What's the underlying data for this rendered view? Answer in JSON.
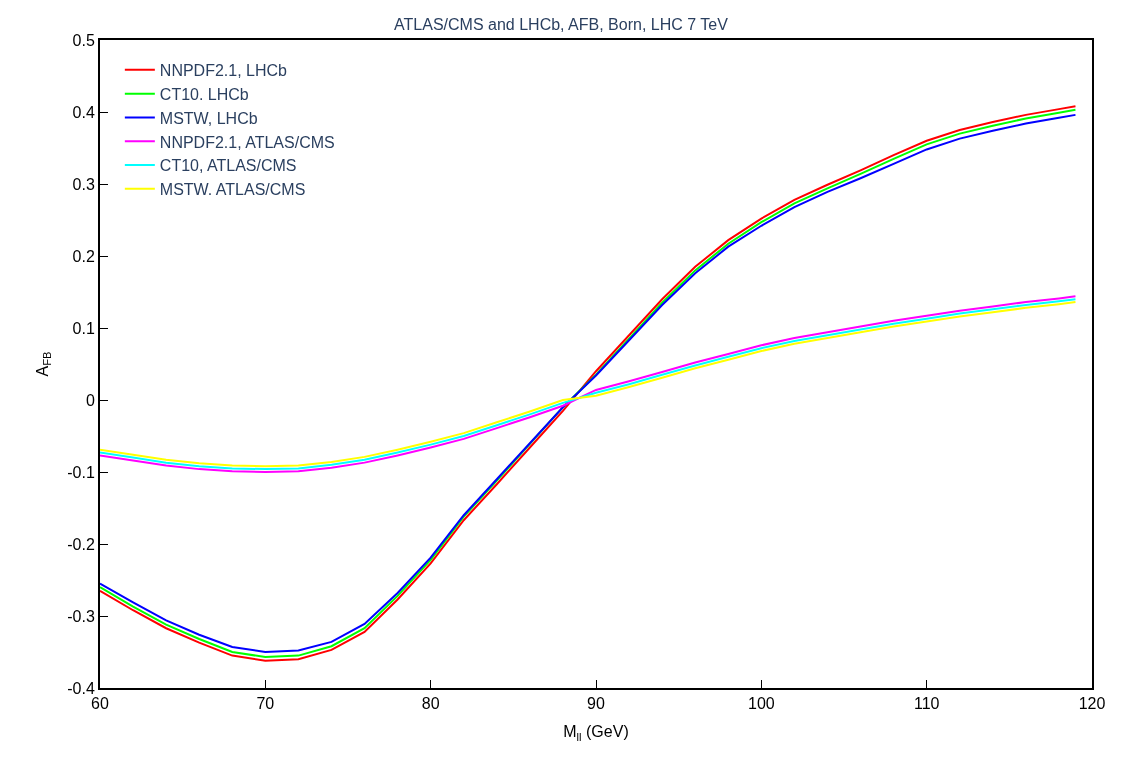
{
  "chart_data": {
    "type": "line",
    "title": "ATLAS/CMS and LHCb, AFB, Born, LHC 7 TeV",
    "xlabel": "M$_{ll}$ (GeV)",
    "ylabel": "A$_{FB}$",
    "x": [
      60,
      62,
      64,
      66,
      68,
      70,
      72,
      74,
      76,
      78,
      80,
      82,
      84,
      86,
      88,
      90,
      92,
      94,
      96,
      98,
      100,
      102,
      104,
      106,
      108,
      110,
      112,
      114,
      116,
      118,
      119
    ],
    "series": [
      {
        "name": "NNPDF2.1, LHCb",
        "color": "#ff0000",
        "values": [
          -0.265,
          -0.292,
          -0.317,
          -0.337,
          -0.355,
          -0.362,
          -0.36,
          -0.347,
          -0.322,
          -0.277,
          -0.227,
          -0.167,
          -0.117,
          -0.066,
          -0.015,
          0.04,
          0.09,
          0.14,
          0.185,
          0.222,
          0.252,
          0.278,
          0.299,
          0.319,
          0.34,
          0.36,
          0.375,
          0.386,
          0.396,
          0.404,
          0.408
        ]
      },
      {
        "name": "CT10. LHCb",
        "color": "#00ff00",
        "values": [
          -0.26,
          -0.287,
          -0.312,
          -0.332,
          -0.35,
          -0.357,
          -0.355,
          -0.342,
          -0.317,
          -0.272,
          -0.222,
          -0.162,
          -0.112,
          -0.061,
          -0.01,
          0.035,
          0.085,
          0.135,
          0.18,
          0.217,
          0.247,
          0.273,
          0.294,
          0.314,
          0.335,
          0.355,
          0.37,
          0.381,
          0.391,
          0.399,
          0.403
        ]
      },
      {
        "name": "MSTW, LHCb",
        "color": "#0000ff",
        "values": [
          -0.255,
          -0.281,
          -0.306,
          -0.326,
          -0.343,
          -0.35,
          -0.348,
          -0.336,
          -0.311,
          -0.268,
          -0.219,
          -0.16,
          -0.11,
          -0.06,
          -0.01,
          0.034,
          0.083,
          0.132,
          0.176,
          0.213,
          0.242,
          0.268,
          0.289,
          0.308,
          0.328,
          0.348,
          0.363,
          0.374,
          0.384,
          0.392,
          0.396
        ]
      },
      {
        "name": "NNPDF2.1, ATLAS/CMS",
        "color": "#ff00ff",
        "values": [
          -0.077,
          -0.084,
          -0.091,
          -0.096,
          -0.099,
          -0.1,
          -0.099,
          -0.094,
          -0.087,
          -0.077,
          -0.066,
          -0.054,
          -0.039,
          -0.024,
          -0.008,
          0.014,
          0.026,
          0.039,
          0.052,
          0.064,
          0.076,
          0.086,
          0.094,
          0.102,
          0.11,
          0.117,
          0.124,
          0.13,
          0.136,
          0.141,
          0.144
        ]
      },
      {
        "name": "CT10, ATLAS/CMS",
        "color": "#00ffff",
        "values": [
          -0.073,
          -0.08,
          -0.087,
          -0.092,
          -0.095,
          -0.096,
          -0.095,
          -0.09,
          -0.083,
          -0.073,
          -0.062,
          -0.05,
          -0.035,
          -0.02,
          -0.004,
          0.01,
          0.022,
          0.035,
          0.048,
          0.06,
          0.072,
          0.082,
          0.09,
          0.098,
          0.106,
          0.113,
          0.12,
          0.126,
          0.132,
          0.137,
          0.14
        ]
      },
      {
        "name": "MSTW. ATLAS/CMS",
        "color": "#ffff00",
        "values": [
          -0.069,
          -0.076,
          -0.083,
          -0.088,
          -0.091,
          -0.092,
          -0.091,
          -0.086,
          -0.079,
          -0.069,
          -0.058,
          -0.046,
          -0.031,
          -0.016,
          0.0,
          0.006,
          0.018,
          0.031,
          0.044,
          0.056,
          0.068,
          0.078,
          0.086,
          0.094,
          0.102,
          0.109,
          0.116,
          0.122,
          0.128,
          0.133,
          0.136
        ]
      }
    ],
    "xlim": [
      60,
      120
    ],
    "xticks": [
      60,
      70,
      80,
      90,
      100,
      110,
      120
    ],
    "ylim": [
      -0.4,
      0.5
    ],
    "yticks": [
      {
        "value": -0.4,
        "label": "-0.4"
      },
      {
        "value": -0.3,
        "label": "-0.3"
      },
      {
        "value": -0.2,
        "label": "-0.2"
      },
      {
        "value": -0.1,
        "label": "-0.1"
      },
      0,
      0.1,
      0.2,
      0.3,
      0.4,
      0.5
    ],
    "legend": "top left"
  }
}
